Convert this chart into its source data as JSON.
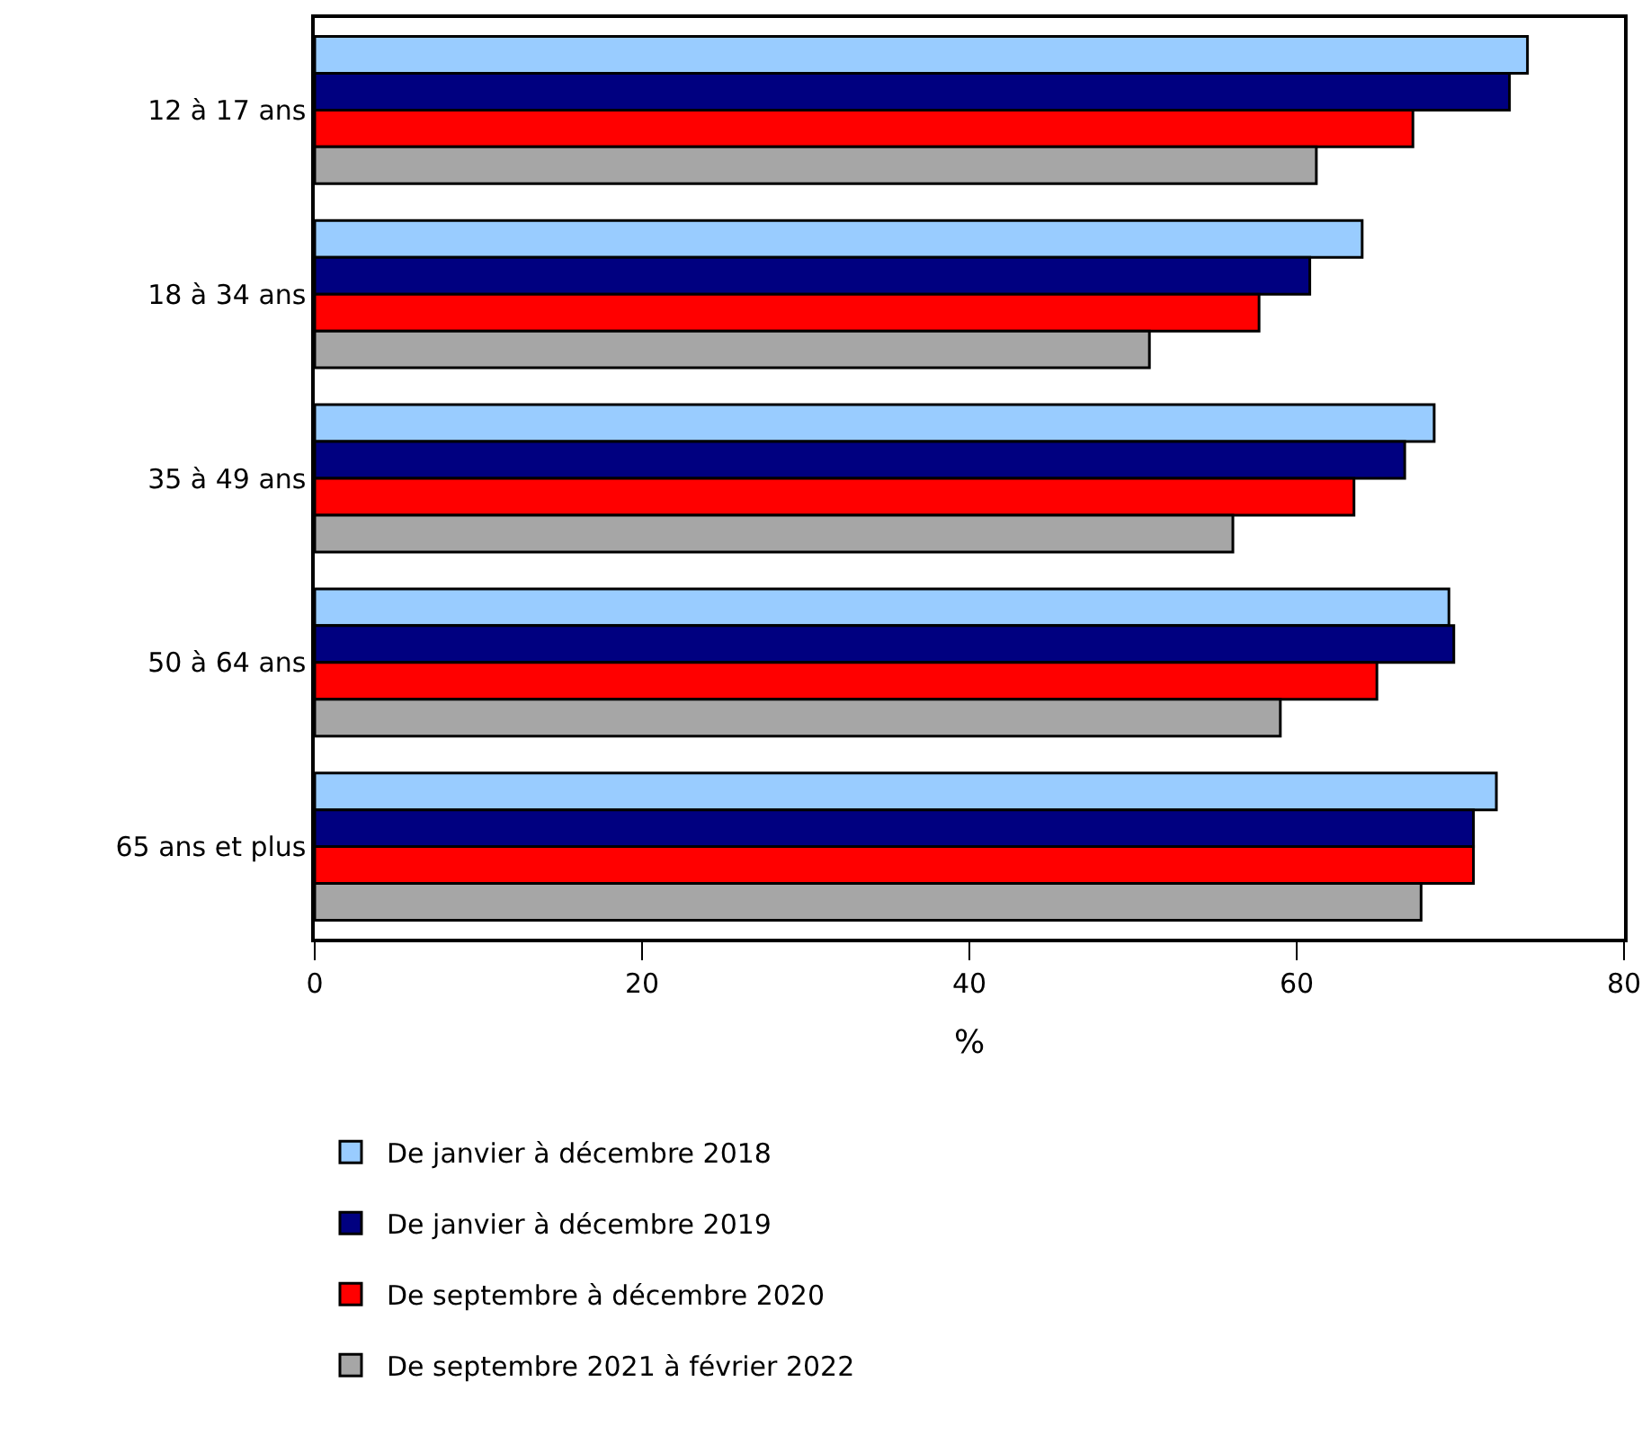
{
  "chart_data": {
    "type": "bar",
    "orientation": "horizontal",
    "xlabel": "%",
    "categories": [
      "12 à 17 ans",
      "18 à 34 ans",
      "35 à 49 ans",
      "50 à 64 ans",
      "65 ans et plus"
    ],
    "series": [
      {
        "name": "De janvier à décembre 2018",
        "color": "#99ccff",
        "values": [
          74.1,
          64.0,
          68.4,
          69.3,
          72.2
        ]
      },
      {
        "name": "De janvier à décembre 2019",
        "color": "#000080",
        "values": [
          73.0,
          60.8,
          66.6,
          69.6,
          70.8
        ]
      },
      {
        "name": "De septembre à décembre 2020",
        "color": "#ff0000",
        "values": [
          67.1,
          57.7,
          63.5,
          64.9,
          70.8
        ]
      },
      {
        "name": "De septembre 2021 à février 2022",
        "color": "#a6a6a6",
        "values": [
          61.2,
          51.0,
          56.1,
          59.0,
          67.6
        ]
      }
    ],
    "xlim": [
      0,
      80
    ],
    "xticks": [
      0,
      20,
      40,
      60,
      80
    ],
    "grid": false,
    "legend": "bottom"
  }
}
